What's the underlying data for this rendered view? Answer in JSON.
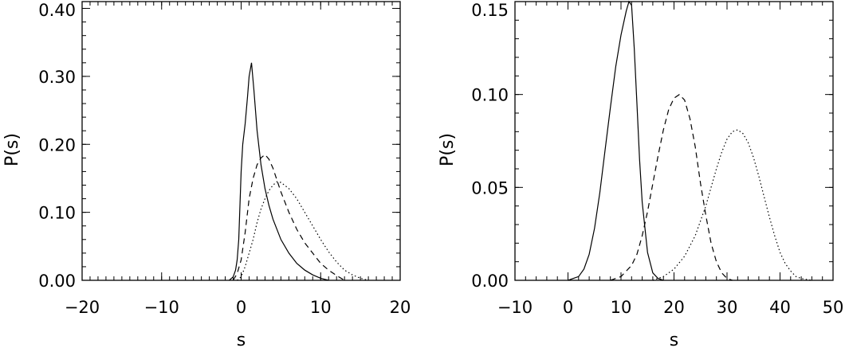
{
  "chart_data": [
    {
      "type": "line",
      "title": "",
      "xlabel": "s",
      "ylabel": "P(s)",
      "xlim": [
        -20,
        20
      ],
      "ylim": [
        0,
        0.41
      ],
      "xticks": [
        -20,
        -10,
        0,
        10,
        20
      ],
      "xtick_labels": [
        "−20",
        "−10",
        "0",
        "10",
        "20"
      ],
      "yticks": [
        0,
        0.1,
        0.2,
        0.3,
        0.4
      ],
      "ytick_labels": [
        "0.00",
        "0.10",
        "0.20",
        "0.30",
        "0.40"
      ],
      "minor_x_step": 1,
      "minor_y_step": 0.02,
      "grid": false,
      "series": [
        {
          "style": "solid",
          "x": [
            -1.5,
            -1.0,
            -0.7,
            -0.5,
            -0.3,
            0.0,
            0.2,
            0.5,
            0.8,
            1.0,
            1.3,
            1.6,
            2.0,
            2.5,
            3.0,
            3.5,
            4.0,
            5.0,
            6.0,
            7.0,
            8.0,
            9.0,
            10.0,
            11.0
          ],
          "y": [
            0.0,
            0.005,
            0.015,
            0.03,
            0.06,
            0.16,
            0.2,
            0.23,
            0.27,
            0.3,
            0.32,
            0.28,
            0.22,
            0.17,
            0.135,
            0.11,
            0.09,
            0.06,
            0.04,
            0.025,
            0.015,
            0.008,
            0.003,
            0.0
          ]
        },
        {
          "style": "dashed",
          "x": [
            -1.0,
            -0.5,
            0.0,
            0.5,
            1.0,
            1.5,
            2.0,
            2.5,
            3.0,
            3.5,
            4.0,
            5.0,
            6.0,
            7.0,
            8.0,
            9.0,
            10.0,
            11.0,
            12.0,
            13.0
          ],
          "y": [
            0.0,
            0.01,
            0.03,
            0.07,
            0.12,
            0.15,
            0.17,
            0.18,
            0.185,
            0.178,
            0.165,
            0.13,
            0.1,
            0.075,
            0.055,
            0.04,
            0.025,
            0.015,
            0.007,
            0.0
          ]
        },
        {
          "style": "dotted",
          "x": [
            -0.5,
            0.0,
            0.5,
            1.0,
            1.5,
            2.0,
            2.5,
            3.0,
            3.5,
            4.0,
            4.5,
            5.0,
            6.0,
            7.0,
            8.0,
            9.0,
            10.0,
            11.0,
            12.0,
            13.0,
            14.0,
            15.0,
            16.0
          ],
          "y": [
            0.0,
            0.005,
            0.02,
            0.04,
            0.06,
            0.085,
            0.105,
            0.12,
            0.132,
            0.14,
            0.145,
            0.144,
            0.135,
            0.12,
            0.1,
            0.08,
            0.06,
            0.042,
            0.027,
            0.015,
            0.008,
            0.003,
            0.0
          ]
        }
      ]
    },
    {
      "type": "line",
      "title": "",
      "xlabel": "s",
      "ylabel": "P(s)",
      "xlim": [
        -10,
        50
      ],
      "ylim": [
        0,
        0.15
      ],
      "xticks": [
        -10,
        0,
        10,
        20,
        30,
        40,
        50
      ],
      "xtick_labels": [
        "−10",
        "0",
        "10",
        "20",
        "30",
        "40",
        "50"
      ],
      "yticks": [
        0,
        0.05,
        0.1,
        0.15
      ],
      "ytick_labels": [
        "0.00",
        "0.05",
        "0.10",
        "0.15"
      ],
      "minor_x_step": 2,
      "minor_y_step": 0.01,
      "grid": false,
      "series": [
        {
          "style": "solid",
          "x": [
            0,
            2,
            3,
            4,
            5,
            6,
            7,
            8,
            9,
            10,
            11,
            11.5,
            12,
            12.5,
            13,
            13.5,
            14,
            15,
            16,
            17,
            18
          ],
          "y": [
            0.0,
            0.002,
            0.006,
            0.014,
            0.028,
            0.047,
            0.07,
            0.093,
            0.115,
            0.132,
            0.145,
            0.15,
            0.148,
            0.125,
            0.095,
            0.065,
            0.042,
            0.015,
            0.004,
            0.001,
            0.0
          ]
        },
        {
          "style": "dashed",
          "x": [
            8,
            10,
            12,
            13,
            14,
            15,
            16,
            17,
            18,
            19,
            20,
            21,
            22,
            23,
            24,
            25,
            26,
            27,
            28,
            29,
            30,
            31
          ],
          "y": [
            0.0,
            0.002,
            0.008,
            0.014,
            0.024,
            0.037,
            0.052,
            0.067,
            0.081,
            0.092,
            0.098,
            0.1,
            0.097,
            0.087,
            0.072,
            0.052,
            0.035,
            0.02,
            0.01,
            0.004,
            0.001,
            0.0
          ]
        },
        {
          "style": "dotted",
          "x": [
            16,
            18,
            20,
            22,
            24,
            26,
            27,
            28,
            29,
            30,
            31,
            32,
            33,
            34,
            35,
            36,
            37,
            38,
            39,
            40,
            41,
            42,
            43,
            44,
            46
          ],
          "y": [
            0.0,
            0.002,
            0.006,
            0.013,
            0.024,
            0.04,
            0.05,
            0.06,
            0.069,
            0.076,
            0.08,
            0.081,
            0.079,
            0.074,
            0.066,
            0.056,
            0.045,
            0.034,
            0.024,
            0.015,
            0.009,
            0.005,
            0.002,
            0.001,
            0.0
          ]
        }
      ]
    }
  ]
}
